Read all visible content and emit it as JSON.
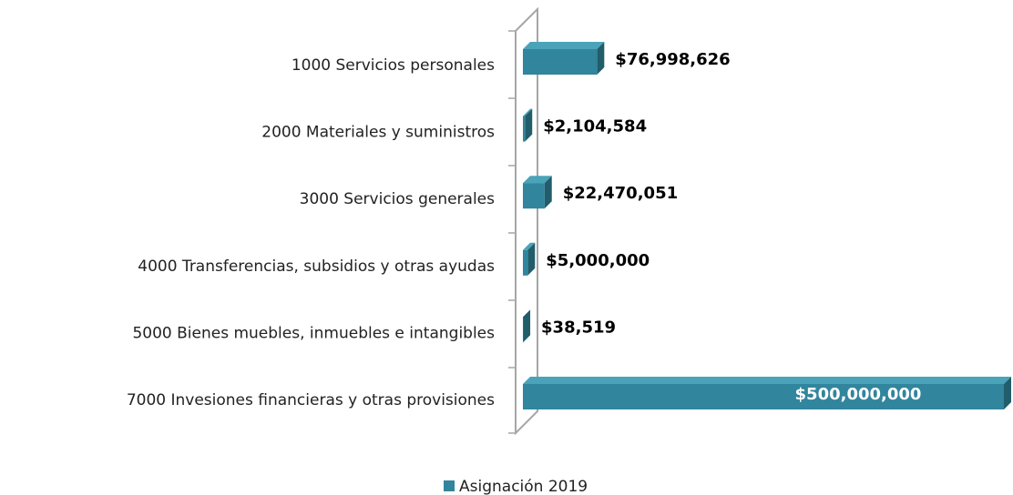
{
  "chart_data": {
    "type": "bar",
    "orientation": "horizontal",
    "categories": [
      "1000 Servicios personales",
      "2000 Materiales y suministros",
      "3000 Servicios generales",
      "4000 Transferencias, subsidios y otras ayudas",
      "5000 Bienes muebles, inmuebles e intangibles",
      "7000 Invesiones financieras y otras provisiones"
    ],
    "series": [
      {
        "name": "Asignación 2019",
        "color": "#31859c",
        "values": [
          76998626,
          2104584,
          22470051,
          5000000,
          38519,
          500000000
        ],
        "value_labels": [
          "$76,998,626",
          "$2,104,584",
          "$22,470,051",
          "$5,000,000",
          "$38,519",
          "$500,000,000"
        ]
      }
    ],
    "xlim": [
      0,
      500000000
    ],
    "legend": "bottom"
  }
}
